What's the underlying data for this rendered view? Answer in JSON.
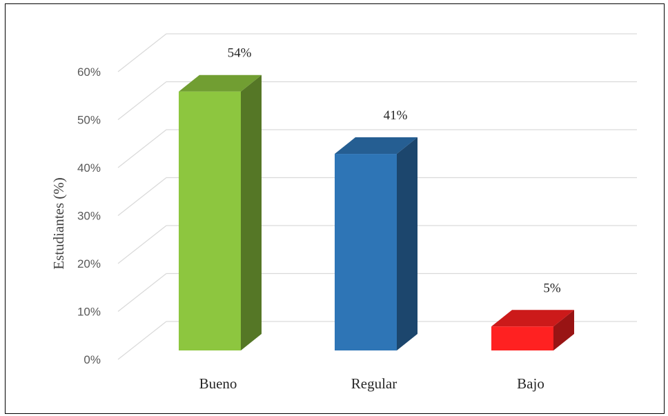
{
  "chart_data": {
    "type": "bar",
    "three_d": true,
    "categories": [
      "Bueno",
      "Regular",
      "Bajo"
    ],
    "values": [
      54,
      41,
      5
    ],
    "data_labels": [
      "54%",
      "41%",
      "5%"
    ],
    "colors": [
      "#8DC63F",
      "#2E75B6",
      "#FF2121"
    ],
    "ylabel": "Estudiantes (%)",
    "ylim": [
      0,
      60
    ],
    "yticks": [
      "0%",
      "10%",
      "20%",
      "30%",
      "40%",
      "50%",
      "60%"
    ],
    "grid": true,
    "legend": "none"
  }
}
